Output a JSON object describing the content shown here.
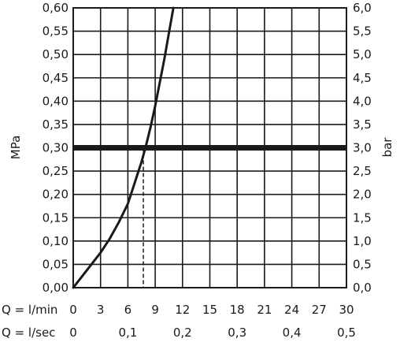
{
  "chart_data": {
    "type": "line",
    "title": "",
    "ylabel": "MPa",
    "ylabel_right": "bar",
    "xlim": [
      0,
      30
    ],
    "ylim": [
      0,
      0.6
    ],
    "grid": true,
    "x_ticks": [
      "0",
      "3",
      "6",
      "9",
      "12",
      "15",
      "18",
      "21",
      "24",
      "27",
      "30"
    ],
    "x_ticks_sec": [
      "0",
      "0,1",
      "0,2",
      "0,3",
      "0,4",
      "0,5"
    ],
    "y_ticks_left": [
      "0,00",
      "0,05",
      "0,10",
      "0,15",
      "0,20",
      "0,25",
      "0,30",
      "0,35",
      "0,40",
      "0,45",
      "0,50",
      "0,55",
      "0,60"
    ],
    "y_ticks_right": [
      "0,0",
      "0,5",
      "1,0",
      "1,5",
      "2,0",
      "2,5",
      "3,0",
      "3,5",
      "4,0",
      "4,5",
      "5,0",
      "5,5",
      "6,0"
    ],
    "row_label_lmin": "Q = l/min",
    "row_label_lsec": "Q = l/sec",
    "series": [
      {
        "x": [
          0,
          1,
          2,
          3,
          4,
          5,
          6,
          6.5,
          7,
          7.5,
          8,
          8.5,
          9,
          9.5,
          10,
          10.5,
          11
        ],
        "values": [
          0,
          0.025,
          0.05,
          0.075,
          0.105,
          0.14,
          0.18,
          0.21,
          0.24,
          0.27,
          0.305,
          0.345,
          0.39,
          0.44,
          0.49,
          0.545,
          0.6
        ]
      }
    ],
    "reference_line": {
      "y": 0.3
    },
    "marker": {
      "x": 7.7,
      "y": 0.3
    }
  }
}
